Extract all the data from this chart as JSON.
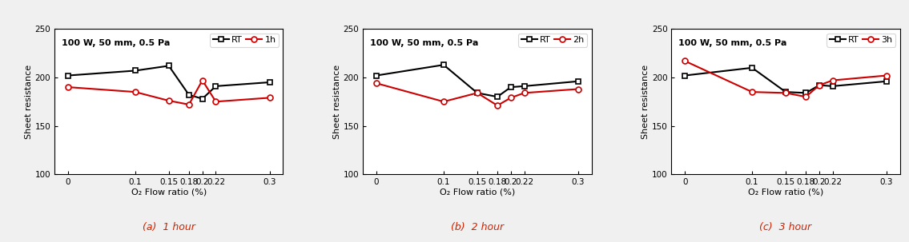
{
  "x_values": [
    0,
    0.1,
    0.15,
    0.18,
    0.2,
    0.22,
    0.3
  ],
  "x_ticks": [
    0,
    0.1,
    0.15,
    0.18,
    0.2,
    0.22,
    0.3
  ],
  "x_tick_labels": [
    "0",
    "0.1",
    "0.15",
    "0.18",
    "0.2",
    "0.22",
    "0.3"
  ],
  "ylim": [
    100,
    250
  ],
  "y_ticks": [
    100,
    150,
    200,
    250
  ],
  "xlabel": "O₂ Flow ratio (%)",
  "ylabel": "Sheet resistance",
  "annotation": "100 W, 50 mm, 0.5 Pa",
  "panels": [
    {
      "title_legend": "1h",
      "caption": "(a)  1 hour",
      "rt_values": [
        202,
        207,
        212,
        182,
        178,
        191,
        195
      ],
      "heat_values": [
        190,
        185,
        176,
        172,
        197,
        175,
        179
      ]
    },
    {
      "title_legend": "2h",
      "caption": "(b)  2 hour",
      "rt_values": [
        202,
        213,
        184,
        180,
        190,
        191,
        196
      ],
      "heat_values": [
        194,
        175,
        184,
        171,
        179,
        184,
        188
      ]
    },
    {
      "title_legend": "3h",
      "caption": "(c)  3 hour",
      "rt_values": [
        202,
        210,
        185,
        184,
        192,
        191,
        196
      ],
      "heat_values": [
        217,
        185,
        184,
        180,
        192,
        197,
        202
      ]
    }
  ],
  "rt_color": "#000000",
  "heat_color": "#cc0000",
  "rt_marker": "s",
  "heat_marker": "o",
  "rt_label": "RT",
  "linewidth": 1.5,
  "markersize": 5,
  "fontsize_tick": 7.5,
  "fontsize_label": 8,
  "fontsize_annot": 8,
  "fontsize_legend": 8,
  "fontsize_caption": 9,
  "background_color": "#f0f0f0"
}
